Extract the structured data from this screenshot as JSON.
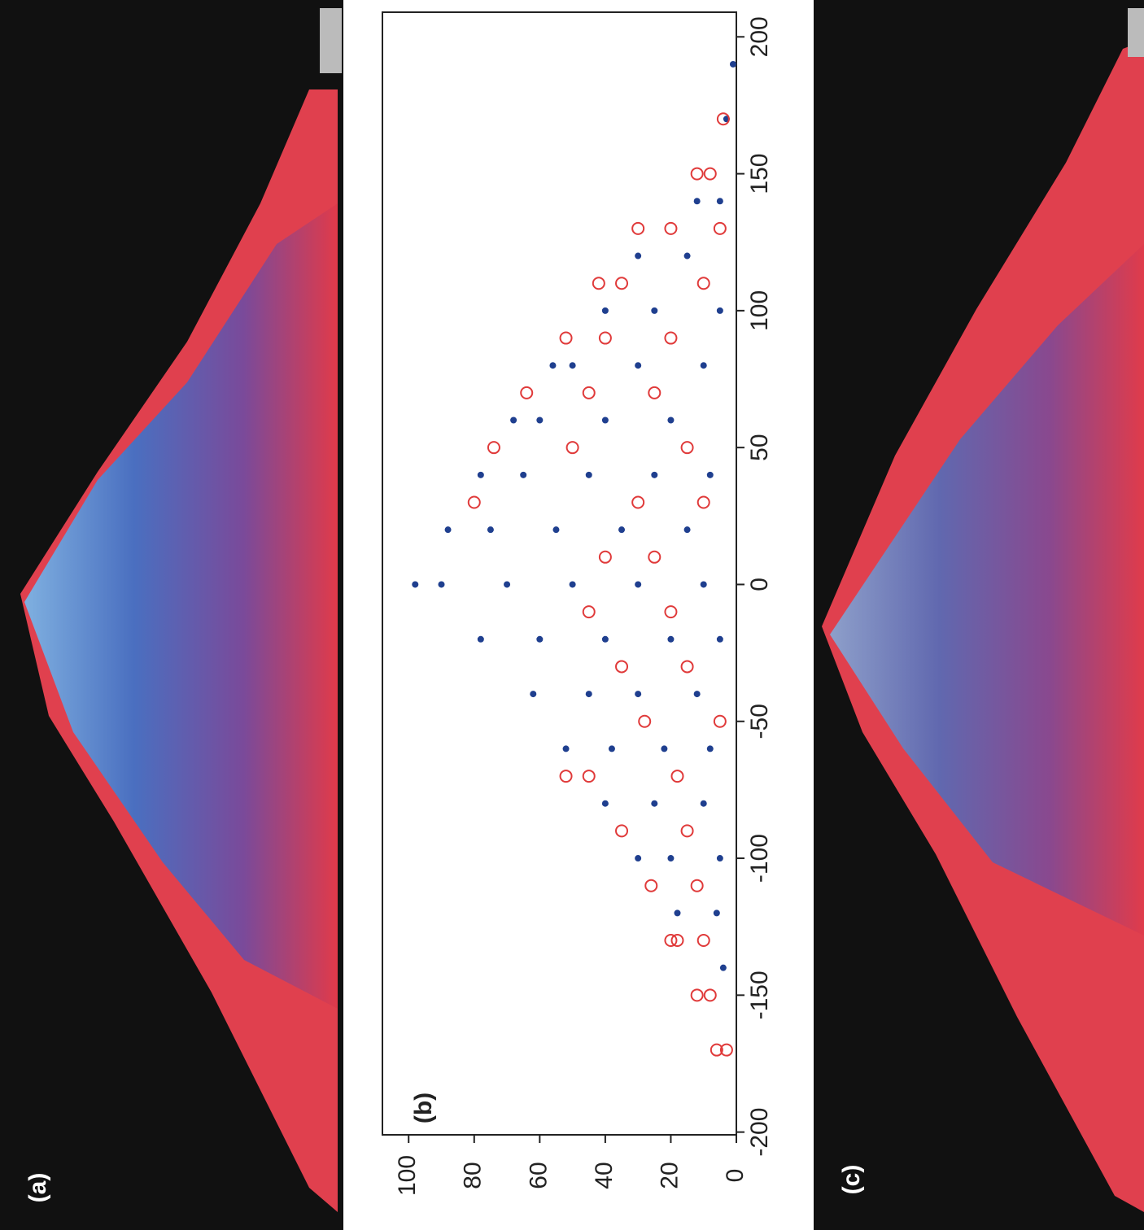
{
  "panels": {
    "a": "(a)",
    "c": "(c)"
  },
  "chart_data": {
    "type": "scatter",
    "label": "(b)",
    "xlim": [
      -201,
      209
    ],
    "ylim": [
      0,
      108
    ],
    "xticks": [
      -200,
      -150,
      -100,
      -50,
      0,
      50,
      100,
      150,
      200
    ],
    "yticks": [
      0,
      20,
      40,
      60,
      80,
      100
    ],
    "series": [
      {
        "color": "#1f3f8f",
        "marker": "dot",
        "x": [
          -140,
          -120,
          -120,
          -100,
          -100,
          -100,
          -80,
          -80,
          -80,
          -60,
          -60,
          -60,
          -60,
          -40,
          -40,
          -40,
          -40,
          -20,
          -20,
          -20,
          -20,
          -20,
          0,
          0,
          0,
          0,
          0,
          0,
          20,
          20,
          20,
          20,
          20,
          40,
          40,
          40,
          40,
          40,
          60,
          60,
          60,
          60,
          80,
          80,
          80,
          80,
          100,
          100,
          100,
          120,
          120,
          140,
          140,
          170,
          190
        ],
        "y": [
          4,
          6,
          18,
          5,
          20,
          30,
          10,
          25,
          40,
          8,
          22,
          38,
          52,
          12,
          30,
          45,
          62,
          5,
          20,
          40,
          60,
          78,
          10,
          30,
          50,
          70,
          90,
          98,
          15,
          35,
          55,
          75,
          88,
          8,
          25,
          45,
          65,
          78,
          20,
          40,
          60,
          68,
          10,
          30,
          50,
          56,
          5,
          25,
          40,
          15,
          30,
          5,
          12,
          3,
          1
        ]
      },
      {
        "color": "#e03a3a",
        "marker": "ring",
        "x": [
          -170,
          -170,
          -150,
          -150,
          -130,
          -130,
          -130,
          -110,
          -110,
          -90,
          -90,
          -70,
          -70,
          -70,
          -50,
          -50,
          -30,
          -30,
          -10,
          -10,
          10,
          10,
          30,
          30,
          30,
          50,
          50,
          50,
          70,
          70,
          70,
          90,
          90,
          90,
          110,
          110,
          110,
          130,
          130,
          130,
          150,
          150,
          170
        ],
        "y": [
          3,
          6,
          8,
          12,
          10,
          18,
          20,
          12,
          26,
          15,
          35,
          18,
          45,
          52,
          5,
          28,
          15,
          35,
          20,
          45,
          25,
          40,
          10,
          30,
          80,
          15,
          50,
          74,
          25,
          45,
          64,
          20,
          40,
          52,
          10,
          35,
          42,
          5,
          20,
          30,
          8,
          12,
          4
        ]
      }
    ]
  }
}
